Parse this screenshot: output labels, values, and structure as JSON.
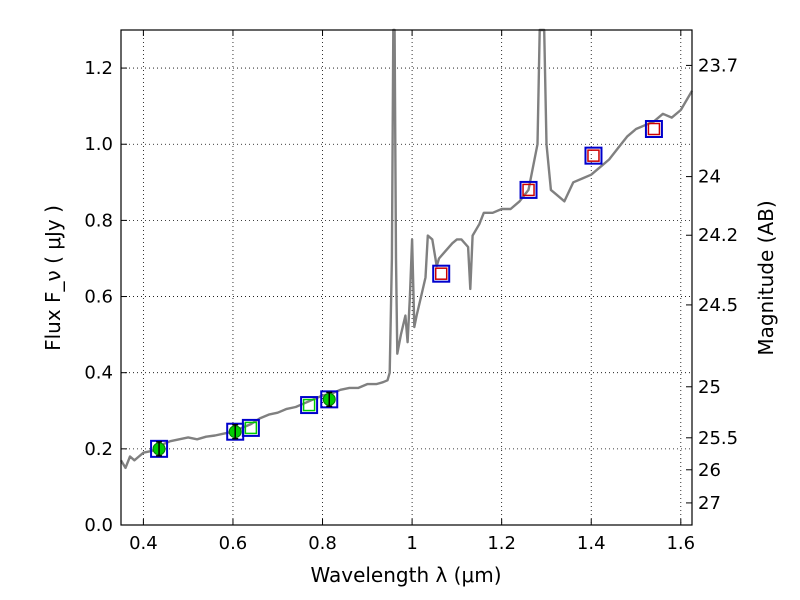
{
  "chart_data": {
    "type": "line",
    "xlabel": "Wavelength  λ (μm)",
    "ylabel": "Flux  F_ν  ( μJy )",
    "ylabel_right": "Magnitude (AB)",
    "xlim": [
      0.35,
      1.625
    ],
    "ylim": [
      0.0,
      1.3
    ],
    "grid": true,
    "x_ticks": [
      0.4,
      0.6,
      0.8,
      1.0,
      1.2,
      1.4,
      1.6
    ],
    "x_tick_labels": [
      "0.4",
      "0.6",
      "0.8",
      "1",
      "1.2",
      "1.4",
      "1.6"
    ],
    "y_ticks": [
      0.0,
      0.2,
      0.4,
      0.6,
      0.8,
      1.0,
      1.2
    ],
    "y_tick_labels": [
      "0.0",
      "0.2",
      "0.4",
      "0.6",
      "0.8",
      "1.0",
      "1.2"
    ],
    "right_ticks": [
      {
        "label": "23.7",
        "flux": 1.207
      },
      {
        "label": "24",
        "flux": 0.915
      },
      {
        "label": "24.2",
        "flux": 0.761
      },
      {
        "label": "24.5",
        "flux": 0.578
      },
      {
        "label": "25",
        "flux": 0.363
      },
      {
        "label": "25.5",
        "flux": 0.229
      },
      {
        "label": "26",
        "flux": 0.145
      },
      {
        "label": "27",
        "flux": 0.058
      }
    ],
    "series": [
      {
        "type": "line",
        "color": "#808080",
        "points": [
          [
            0.35,
            0.17
          ],
          [
            0.36,
            0.15
          ],
          [
            0.37,
            0.18
          ],
          [
            0.38,
            0.17
          ],
          [
            0.39,
            0.18
          ],
          [
            0.4,
            0.19
          ],
          [
            0.42,
            0.195
          ],
          [
            0.44,
            0.21
          ],
          [
            0.46,
            0.22
          ],
          [
            0.48,
            0.225
          ],
          [
            0.5,
            0.23
          ],
          [
            0.52,
            0.225
          ],
          [
            0.54,
            0.232
          ],
          [
            0.56,
            0.235
          ],
          [
            0.58,
            0.24
          ],
          [
            0.6,
            0.245
          ],
          [
            0.62,
            0.255
          ],
          [
            0.64,
            0.265
          ],
          [
            0.66,
            0.28
          ],
          [
            0.68,
            0.29
          ],
          [
            0.7,
            0.295
          ],
          [
            0.72,
            0.305
          ],
          [
            0.74,
            0.31
          ],
          [
            0.76,
            0.32
          ],
          [
            0.78,
            0.33
          ],
          [
            0.8,
            0.34
          ],
          [
            0.82,
            0.345
          ],
          [
            0.84,
            0.355
          ],
          [
            0.86,
            0.36
          ],
          [
            0.88,
            0.36
          ],
          [
            0.9,
            0.37
          ],
          [
            0.92,
            0.37
          ],
          [
            0.935,
            0.375
          ],
          [
            0.945,
            0.38
          ],
          [
            0.95,
            0.4
          ],
          [
            0.955,
            0.7
          ],
          [
            0.958,
            1.3
          ],
          [
            0.961,
            1.3
          ],
          [
            0.964,
            0.7
          ],
          [
            0.967,
            0.45
          ],
          [
            0.975,
            0.5
          ],
          [
            0.985,
            0.55
          ],
          [
            0.99,
            0.48
          ],
          [
            0.995,
            0.6
          ],
          [
            1.0,
            0.75
          ],
          [
            1.005,
            0.52
          ],
          [
            1.01,
            0.55
          ],
          [
            1.02,
            0.6
          ],
          [
            1.03,
            0.65
          ],
          [
            1.035,
            0.76
          ],
          [
            1.045,
            0.75
          ],
          [
            1.055,
            0.68
          ],
          [
            1.06,
            0.7
          ],
          [
            1.075,
            0.72
          ],
          [
            1.09,
            0.74
          ],
          [
            1.1,
            0.75
          ],
          [
            1.11,
            0.75
          ],
          [
            1.125,
            0.73
          ],
          [
            1.13,
            0.62
          ],
          [
            1.135,
            0.76
          ],
          [
            1.15,
            0.79
          ],
          [
            1.16,
            0.82
          ],
          [
            1.18,
            0.82
          ],
          [
            1.2,
            0.83
          ],
          [
            1.22,
            0.83
          ],
          [
            1.24,
            0.85
          ],
          [
            1.26,
            0.88
          ],
          [
            1.28,
            1.0
          ],
          [
            1.285,
            1.3
          ],
          [
            1.295,
            1.3
          ],
          [
            1.3,
            1.0
          ],
          [
            1.31,
            0.88
          ],
          [
            1.32,
            0.87
          ],
          [
            1.34,
            0.85
          ],
          [
            1.36,
            0.9
          ],
          [
            1.38,
            0.91
          ],
          [
            1.4,
            0.92
          ],
          [
            1.42,
            0.94
          ],
          [
            1.44,
            0.96
          ],
          [
            1.46,
            0.99
          ],
          [
            1.48,
            1.02
          ],
          [
            1.5,
            1.04
          ],
          [
            1.52,
            1.05
          ],
          [
            1.54,
            1.06
          ],
          [
            1.56,
            1.08
          ],
          [
            1.58,
            1.07
          ],
          [
            1.6,
            1.09
          ],
          [
            1.625,
            1.14
          ]
        ]
      },
      {
        "type": "scatter",
        "marker": "square-open",
        "color": "#0000cc",
        "x": [
          0.435,
          0.605,
          0.64,
          0.77,
          0.815,
          1.065,
          1.26,
          1.405,
          1.54
        ],
        "y": [
          0.2,
          0.245,
          0.255,
          0.315,
          0.33,
          0.66,
          0.88,
          0.97,
          1.04
        ]
      },
      {
        "type": "scatter",
        "marker": "square-open",
        "color": "#cc0000",
        "x": [
          1.065,
          1.26,
          1.405,
          1.54
        ],
        "y": [
          0.66,
          0.88,
          0.97,
          1.04
        ]
      },
      {
        "type": "scatter",
        "marker": "circle-filled",
        "color": "#00cc00",
        "x": [
          0.435,
          0.605,
          0.815
        ],
        "y": [
          0.2,
          0.245,
          0.33
        ]
      },
      {
        "type": "scatter",
        "marker": "square-open",
        "color": "#00cc00",
        "x": [
          0.64,
          0.77
        ],
        "y": [
          0.255,
          0.315
        ]
      }
    ]
  }
}
